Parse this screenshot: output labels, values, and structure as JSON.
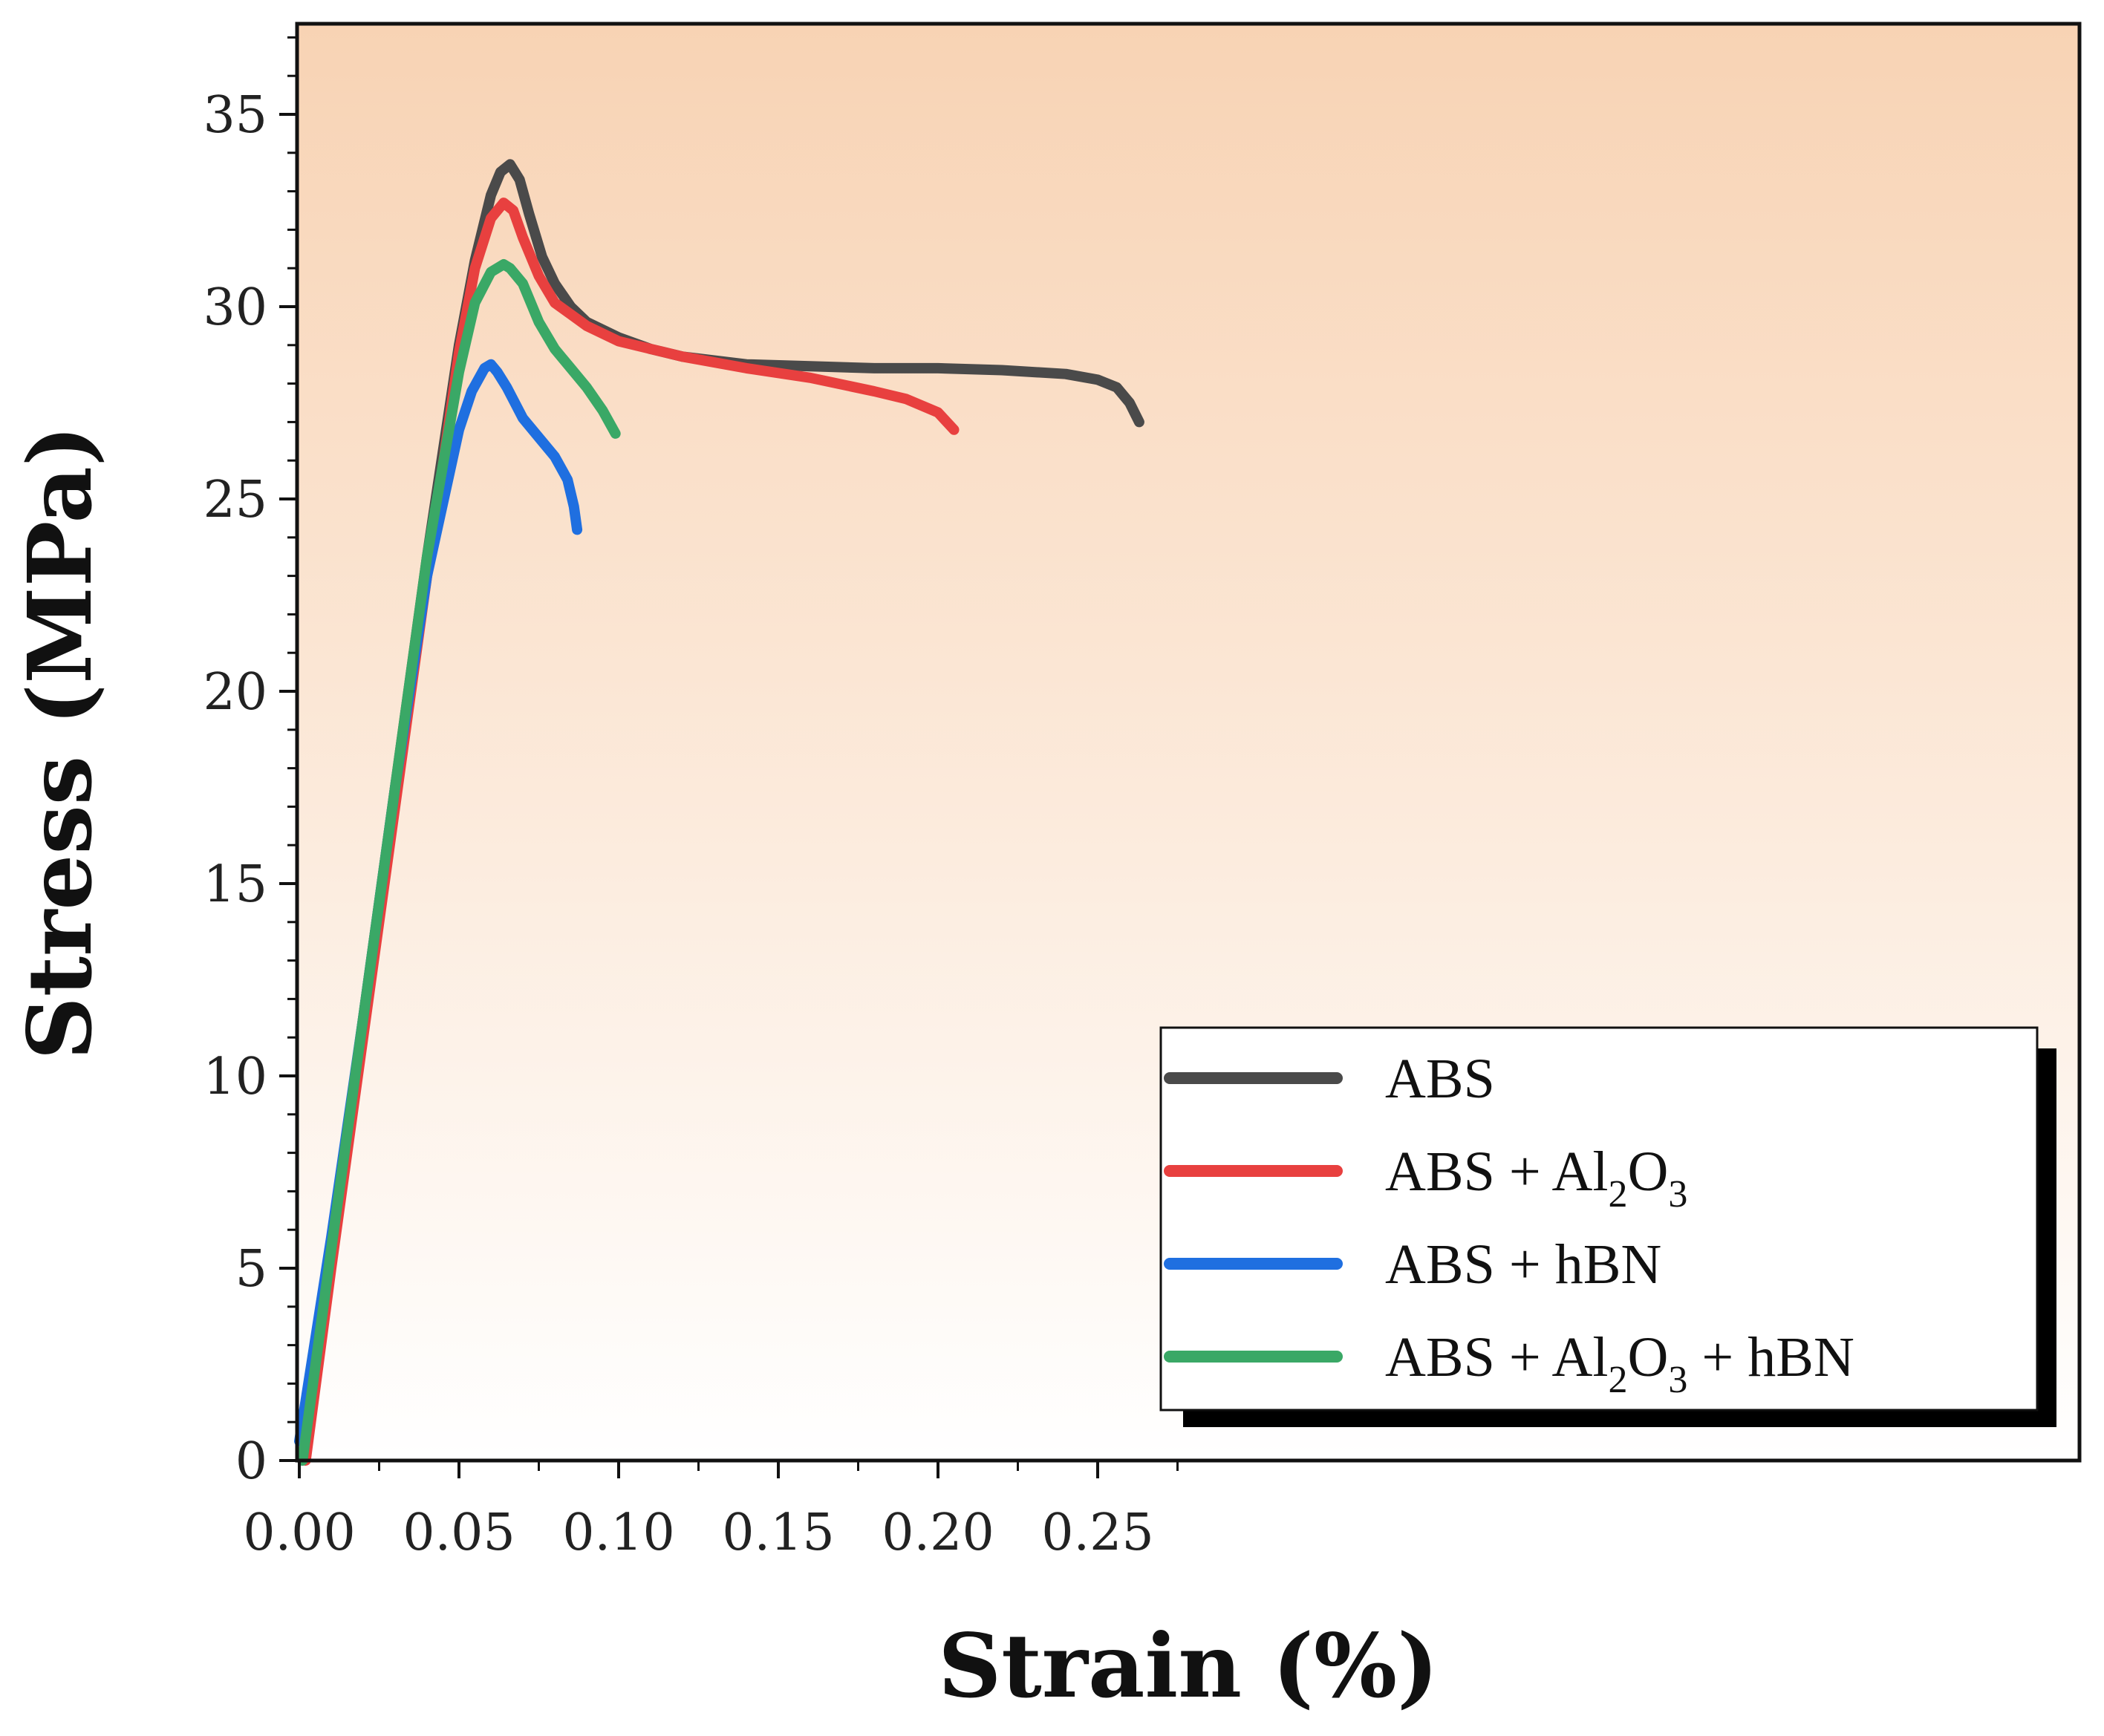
{
  "chart_data": {
    "type": "line",
    "title": "",
    "xlabel": "Strain (%)",
    "ylabel": "Stress (MPa)",
    "xlim": [
      0,
      0.28
    ],
    "ylim": [
      0,
      37.5
    ],
    "x_ticks": [
      0.0,
      0.05,
      0.1,
      0.15,
      0.2,
      0.25
    ],
    "x_tick_labels": [
      "0.00",
      "0.05",
      "0.10",
      "0.15",
      "0.20",
      "0.25"
    ],
    "y_ticks": [
      0,
      5,
      10,
      15,
      20,
      25,
      30,
      35
    ],
    "y_tick_labels": [
      "0",
      "5",
      "10",
      "15",
      "20",
      "25",
      "30",
      "35"
    ],
    "grid": false,
    "background": "gradient peach-to-white",
    "legend_position": "bottom-right",
    "series": [
      {
        "name": "ABS",
        "legend": {
          "base": "ABS",
          "parts": []
        },
        "color": "#4a4a4a",
        "x": [
          0.001,
          0.01,
          0.02,
          0.03,
          0.04,
          0.05,
          0.055,
          0.06,
          0.063,
          0.066,
          0.069,
          0.072,
          0.076,
          0.08,
          0.085,
          0.09,
          0.1,
          0.11,
          0.12,
          0.14,
          0.16,
          0.18,
          0.2,
          0.22,
          0.24,
          0.25,
          0.256,
          0.26,
          0.263
        ],
        "y": [
          0,
          5.5,
          11.5,
          17.5,
          23.5,
          29.0,
          31.2,
          32.9,
          33.5,
          33.7,
          33.3,
          32.4,
          31.3,
          30.6,
          30.0,
          29.6,
          29.2,
          28.9,
          28.7,
          28.5,
          28.45,
          28.4,
          28.4,
          28.35,
          28.25,
          28.1,
          27.9,
          27.5,
          27.0
        ]
      },
      {
        "name": "ABS + Al2O3",
        "legend": {
          "base": "ABS + Al",
          "parts": [
            {
              "sub": "2"
            },
            {
              "text": "O"
            },
            {
              "sub": "3"
            }
          ]
        },
        "color": "#e8403f",
        "x": [
          0.002,
          0.01,
          0.02,
          0.03,
          0.04,
          0.05,
          0.055,
          0.06,
          0.064,
          0.067,
          0.07,
          0.075,
          0.08,
          0.09,
          0.1,
          0.12,
          0.14,
          0.16,
          0.18,
          0.19,
          0.2,
          0.205
        ],
        "y": [
          0,
          5.0,
          11.0,
          17.0,
          23.0,
          28.8,
          31.0,
          32.3,
          32.7,
          32.5,
          31.8,
          30.8,
          30.1,
          29.5,
          29.1,
          28.7,
          28.4,
          28.15,
          27.8,
          27.6,
          27.25,
          26.8
        ]
      },
      {
        "name": "ABS + hBN",
        "legend": {
          "base": "ABS + hBN",
          "parts": []
        },
        "color": "#1f6fe0",
        "x": [
          0.0,
          0.01,
          0.02,
          0.03,
          0.04,
          0.05,
          0.054,
          0.058,
          0.06,
          0.062,
          0.065,
          0.07,
          0.075,
          0.08,
          0.084,
          0.086,
          0.087
        ],
        "y": [
          0.5,
          5.8,
          11.5,
          17.5,
          23.0,
          26.8,
          27.8,
          28.4,
          28.5,
          28.3,
          27.9,
          27.1,
          26.6,
          26.1,
          25.5,
          24.8,
          24.2
        ]
      },
      {
        "name": "ABS + Al2O3 + hBN",
        "legend": {
          "base": "ABS + Al",
          "parts": [
            {
              "sub": "2"
            },
            {
              "text": "O"
            },
            {
              "sub": "3"
            },
            {
              "text": " + hBN"
            }
          ]
        },
        "color": "#3aa866",
        "x": [
          0.001,
          0.01,
          0.02,
          0.03,
          0.04,
          0.05,
          0.055,
          0.06,
          0.064,
          0.066,
          0.07,
          0.075,
          0.08,
          0.085,
          0.09,
          0.095,
          0.099
        ],
        "y": [
          0,
          5.5,
          11.5,
          17.5,
          23.5,
          28.3,
          30.1,
          30.9,
          31.1,
          31.0,
          30.6,
          29.6,
          28.9,
          28.4,
          27.9,
          27.3,
          26.7
        ]
      }
    ]
  }
}
